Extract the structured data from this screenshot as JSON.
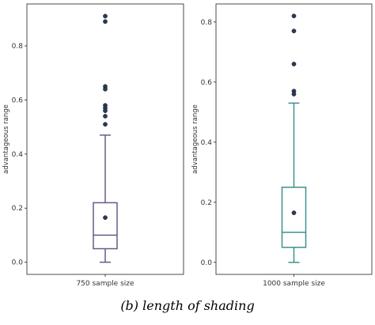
{
  "caption": "(b) length of shading",
  "chart_data": [
    {
      "type": "box",
      "ylabel": "advantageous range",
      "category": "750 sample size",
      "ylim": [
        -0.045,
        0.955
      ],
      "yticks": [
        "0.0",
        "0.2",
        "0.4",
        "0.6",
        "0.8"
      ],
      "color": "#6b5a86",
      "box": {
        "whisker_low": 0.0,
        "q1": 0.05,
        "median": 0.1,
        "q3": 0.22,
        "whisker_high": 0.47,
        "mean": 0.165
      },
      "outliers": [
        0.91,
        0.89,
        0.65,
        0.64,
        0.58,
        0.57,
        0.56,
        0.54,
        0.51
      ]
    },
    {
      "type": "box",
      "ylabel": "advantageous range",
      "category": "1000 sample size",
      "ylim": [
        -0.04,
        0.86
      ],
      "yticks": [
        "0.0",
        "0.2",
        "0.4",
        "0.6",
        "0.8"
      ],
      "color": "#3f8f8f",
      "box": {
        "whisker_low": 0.0,
        "q1": 0.05,
        "median": 0.1,
        "q3": 0.25,
        "whisker_high": 0.53,
        "mean": 0.165
      },
      "outliers": [
        0.82,
        0.77,
        0.66,
        0.57,
        0.56
      ]
    }
  ]
}
